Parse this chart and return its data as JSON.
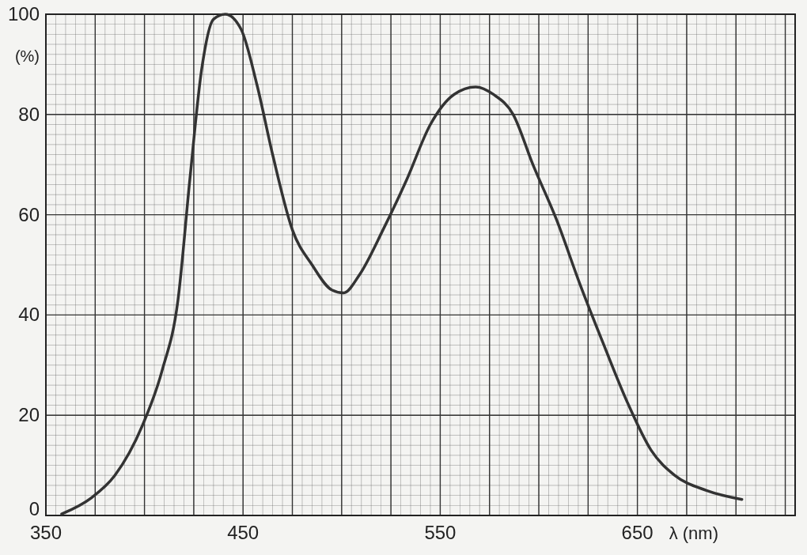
{
  "chart_data": {
    "type": "line",
    "xlabel": "λ (nm)",
    "ylabel": "(%)",
    "x": [
      358,
      373,
      385,
      399,
      409,
      417,
      423,
      429,
      435,
      441,
      449,
      457,
      465,
      475,
      485,
      495,
      501,
      509,
      521,
      533,
      545,
      557,
      568,
      577,
      587,
      597,
      609,
      621,
      633,
      645,
      657,
      669,
      685,
      703
    ],
    "series": [
      {
        "color": "#333333",
        "values": [
          0.3,
          3.5,
          8,
          18,
          29,
          43,
          67,
          89,
          99,
          100,
          97,
          86,
          72,
          57,
          50,
          45,
          44.4,
          48,
          57,
          67,
          78,
          84,
          85.5,
          84,
          80,
          70,
          59,
          46,
          34,
          22.5,
          13,
          8,
          5,
          3.2
        ]
      }
    ],
    "xlim": [
      350,
      730
    ],
    "xticks": [
      350,
      450,
      550,
      650
    ],
    "ylim": [
      0,
      100
    ],
    "yticks": [
      0,
      20,
      40,
      60,
      80,
      100
    ],
    "grid": true,
    "marker": "none",
    "line_style": "solid"
  }
}
